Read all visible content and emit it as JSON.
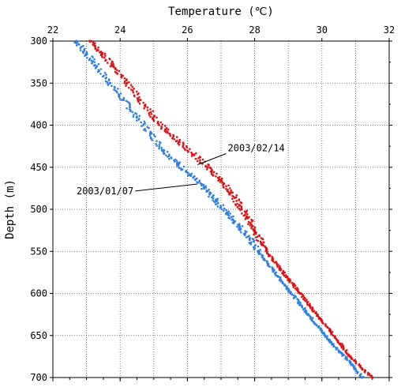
{
  "chart_data": {
    "type": "scatter",
    "title": "",
    "xlabel": "Temperature (℃)",
    "ylabel": "Depth (m)",
    "x_axis_position": "top",
    "y_axis_inverted": true,
    "xlim": [
      22,
      32
    ],
    "ylim": [
      300,
      700
    ],
    "xticks": [
      22,
      24,
      26,
      28,
      30,
      32
    ],
    "yticks": [
      300,
      350,
      400,
      450,
      500,
      550,
      600,
      650,
      700
    ],
    "grid": true,
    "grid_style": "dotted",
    "legend": "none",
    "series": [
      {
        "name": "2003/01/07",
        "color": "#2f7fe6",
        "points": [
          [
            22.7,
            300
          ],
          [
            23.0,
            315
          ],
          [
            23.3,
            330
          ],
          [
            23.7,
            350
          ],
          [
            24.1,
            370
          ],
          [
            24.5,
            390
          ],
          [
            24.9,
            410
          ],
          [
            25.3,
            430
          ],
          [
            25.7,
            445
          ],
          [
            26.1,
            460
          ],
          [
            26.5,
            475
          ],
          [
            26.85,
            490
          ],
          [
            27.2,
            505
          ],
          [
            27.55,
            520
          ],
          [
            27.85,
            535
          ],
          [
            28.1,
            550
          ],
          [
            28.4,
            565
          ],
          [
            28.7,
            580
          ],
          [
            29.0,
            595
          ],
          [
            29.3,
            610
          ],
          [
            29.6,
            625
          ],
          [
            29.9,
            640
          ],
          [
            30.2,
            655
          ],
          [
            30.55,
            670
          ],
          [
            30.9,
            685
          ],
          [
            31.2,
            700
          ]
        ]
      },
      {
        "name": "2003/02/14",
        "color": "#e01010",
        "points": [
          [
            23.1,
            300
          ],
          [
            23.45,
            315
          ],
          [
            23.8,
            330
          ],
          [
            24.2,
            350
          ],
          [
            24.6,
            370
          ],
          [
            25.0,
            390
          ],
          [
            25.35,
            405
          ],
          [
            25.75,
            420
          ],
          [
            26.2,
            435
          ],
          [
            26.6,
            450
          ],
          [
            27.0,
            465
          ],
          [
            27.3,
            480
          ],
          [
            27.55,
            495
          ],
          [
            27.8,
            510
          ],
          [
            28.0,
            525
          ],
          [
            28.2,
            540
          ],
          [
            28.45,
            555
          ],
          [
            28.75,
            570
          ],
          [
            29.05,
            585
          ],
          [
            29.35,
            600
          ],
          [
            29.65,
            615
          ],
          [
            29.95,
            630
          ],
          [
            30.25,
            645
          ],
          [
            30.55,
            660
          ],
          [
            30.85,
            675
          ],
          [
            31.2,
            690
          ],
          [
            31.5,
            700
          ]
        ]
      }
    ],
    "annotations": [
      {
        "text": "2003/02/14",
        "points_to": [
          26.3,
          447
        ],
        "text_at": [
          27.2,
          431
        ]
      },
      {
        "text": "2003/01/07",
        "points_to": [
          26.3,
          470
        ],
        "text_at": [
          24.4,
          482
        ]
      }
    ]
  }
}
